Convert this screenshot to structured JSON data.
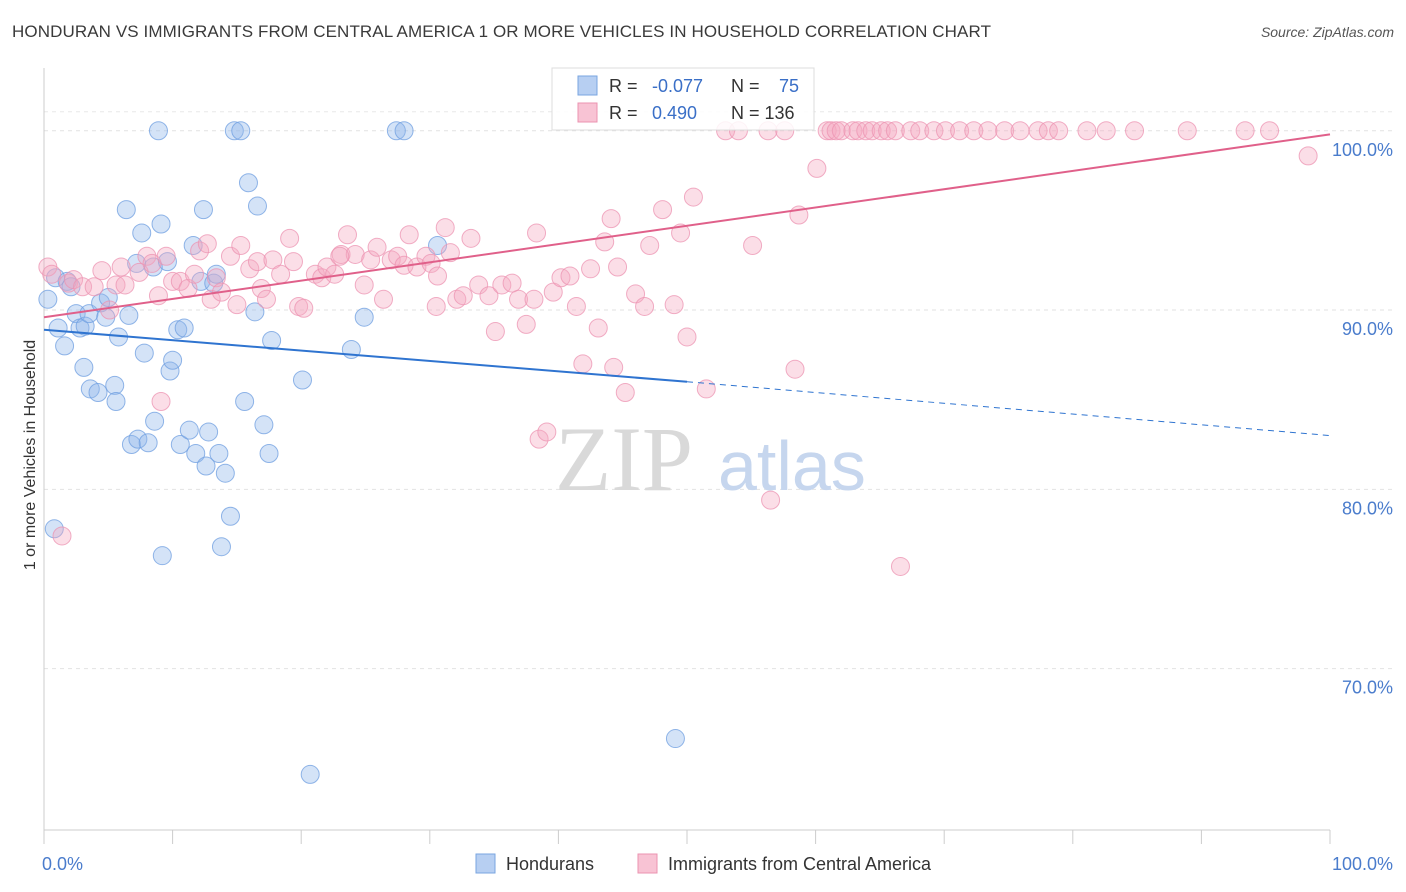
{
  "title": "HONDURAN VS IMMIGRANTS FROM CENTRAL AMERICA 1 OR MORE VEHICLES IN HOUSEHOLD CORRELATION CHART",
  "source": "Source: ZipAtlas.com",
  "watermark": {
    "zip": "ZIP",
    "atlas": "atlas"
  },
  "legend_box": {
    "rows": [
      {
        "r_label": "R =",
        "r_value": "-0.077",
        "n_label": "N =",
        "n_value": "75"
      },
      {
        "r_label": "R =",
        "r_value": "0.490",
        "n_label": "N = 136",
        "n_value": ""
      }
    ]
  },
  "chart_data": {
    "type": "scatter",
    "xlabel": "",
    "ylabel": "1 or more Vehicles in Household",
    "x_tick_labels": [
      "0.0%",
      "100.0%"
    ],
    "y_tick_labels": [
      "100.0%",
      "90.0%",
      "80.0%",
      "70.0%"
    ],
    "xlim": [
      0,
      100
    ],
    "ylim": [
      61,
      103.5
    ],
    "y_ticks": [
      100,
      90,
      80,
      70
    ],
    "grid": "horizontal dashed",
    "legend_position": "bottom-center",
    "colors": {
      "blue": "#8fb6ea",
      "blue_line": "#2f74d0",
      "pink": "#f4a9c1",
      "pink_line": "#e0608a",
      "tick_label": "#4a7ccc"
    },
    "series": [
      {
        "name": "Hondurans",
        "color": "#8fb6ea",
        "trend": {
          "x": [
            0,
            50
          ],
          "y": [
            88.9,
            86.0
          ],
          "dashed_to": [
            100,
            83.0
          ]
        },
        "points": [
          [
            0.3,
            90.6
          ],
          [
            0.8,
            77.8
          ],
          [
            0.9,
            91.8
          ],
          [
            1.1,
            89.0
          ],
          [
            1.6,
            88.0
          ],
          [
            1.8,
            91.6
          ],
          [
            2.1,
            91.3
          ],
          [
            2.5,
            89.8
          ],
          [
            2.8,
            89.0
          ],
          [
            3.1,
            86.8
          ],
          [
            3.2,
            89.1
          ],
          [
            3.5,
            89.8
          ],
          [
            3.6,
            85.6
          ],
          [
            4.2,
            85.4
          ],
          [
            4.4,
            90.4
          ],
          [
            4.8,
            89.6
          ],
          [
            5.0,
            90.7
          ],
          [
            5.5,
            85.8
          ],
          [
            5.6,
            84.9
          ],
          [
            5.8,
            88.5
          ],
          [
            6.4,
            95.6
          ],
          [
            6.6,
            89.7
          ],
          [
            6.8,
            82.5
          ],
          [
            7.2,
            92.6
          ],
          [
            7.3,
            82.8
          ],
          [
            7.6,
            94.3
          ],
          [
            7.8,
            87.6
          ],
          [
            8.1,
            82.6
          ],
          [
            8.5,
            92.4
          ],
          [
            8.6,
            83.8
          ],
          [
            8.9,
            100.0
          ],
          [
            9.1,
            94.8
          ],
          [
            9.2,
            76.3
          ],
          [
            9.6,
            92.7
          ],
          [
            9.8,
            86.6
          ],
          [
            10.0,
            87.2
          ],
          [
            10.4,
            88.9
          ],
          [
            10.6,
            82.5
          ],
          [
            10.9,
            89.0
          ],
          [
            11.3,
            83.3
          ],
          [
            11.6,
            93.6
          ],
          [
            11.8,
            82.0
          ],
          [
            12.2,
            91.6
          ],
          [
            12.4,
            95.6
          ],
          [
            12.6,
            81.3
          ],
          [
            12.8,
            83.2
          ],
          [
            13.2,
            91.5
          ],
          [
            13.4,
            92.0
          ],
          [
            13.6,
            82.0
          ],
          [
            13.8,
            76.8
          ],
          [
            14.1,
            80.9
          ],
          [
            14.5,
            78.5
          ],
          [
            14.8,
            100.0
          ],
          [
            15.3,
            100.0
          ],
          [
            15.6,
            84.9
          ],
          [
            15.9,
            97.1
          ],
          [
            16.4,
            89.9
          ],
          [
            16.6,
            95.8
          ],
          [
            17.1,
            83.6
          ],
          [
            17.5,
            82.0
          ],
          [
            17.7,
            88.3
          ],
          [
            20.1,
            86.1
          ],
          [
            20.7,
            64.1
          ],
          [
            23.9,
            87.8
          ],
          [
            24.9,
            89.6
          ],
          [
            27.4,
            100.0
          ],
          [
            28.0,
            100.0
          ],
          [
            30.6,
            93.6
          ],
          [
            49.1,
            66.1
          ]
        ]
      },
      {
        "name": "Immigrants from Central America",
        "color": "#f4a9c1",
        "trend": {
          "x": [
            0,
            100
          ],
          "y": [
            89.6,
            99.8
          ]
        },
        "points": [
          [
            0.3,
            92.4
          ],
          [
            0.6,
            92.0
          ],
          [
            1.4,
            77.4
          ],
          [
            1.9,
            91.5
          ],
          [
            2.3,
            91.7
          ],
          [
            3.0,
            91.3
          ],
          [
            3.9,
            91.3
          ],
          [
            4.5,
            92.2
          ],
          [
            5.1,
            90.0
          ],
          [
            5.6,
            91.4
          ],
          [
            6.0,
            92.4
          ],
          [
            6.3,
            91.4
          ],
          [
            7.4,
            92.1
          ],
          [
            8.0,
            93.0
          ],
          [
            8.4,
            92.6
          ],
          [
            8.9,
            90.8
          ],
          [
            9.1,
            84.9
          ],
          [
            9.5,
            93.0
          ],
          [
            10.0,
            91.6
          ],
          [
            10.6,
            91.6
          ],
          [
            11.2,
            91.2
          ],
          [
            11.7,
            92.0
          ],
          [
            12.1,
            93.3
          ],
          [
            12.7,
            93.7
          ],
          [
            13.0,
            90.6
          ],
          [
            13.4,
            91.8
          ],
          [
            13.8,
            91.0
          ],
          [
            14.5,
            93.0
          ],
          [
            15.0,
            90.3
          ],
          [
            15.3,
            93.6
          ],
          [
            16.0,
            92.3
          ],
          [
            16.6,
            92.7
          ],
          [
            16.9,
            91.2
          ],
          [
            17.3,
            90.6
          ],
          [
            17.8,
            92.8
          ],
          [
            18.4,
            92.0
          ],
          [
            19.1,
            94.0
          ],
          [
            19.4,
            92.7
          ],
          [
            19.8,
            90.2
          ],
          [
            20.2,
            90.1
          ],
          [
            21.1,
            92.0
          ],
          [
            21.6,
            91.8
          ],
          [
            22.0,
            92.4
          ],
          [
            22.6,
            92.0
          ],
          [
            23.1,
            93.1
          ],
          [
            23.6,
            94.2
          ],
          [
            24.2,
            93.1
          ],
          [
            24.9,
            91.4
          ],
          [
            25.4,
            92.8
          ],
          [
            25.9,
            93.5
          ],
          [
            26.4,
            90.6
          ],
          [
            27.0,
            92.8
          ],
          [
            27.5,
            93.0
          ],
          [
            28.0,
            92.5
          ],
          [
            28.4,
            94.2
          ],
          [
            29.0,
            92.4
          ],
          [
            29.7,
            93.0
          ],
          [
            30.1,
            92.6
          ],
          [
            30.5,
            90.2
          ],
          [
            31.2,
            94.6
          ],
          [
            31.6,
            93.2
          ],
          [
            32.1,
            90.6
          ],
          [
            32.6,
            90.8
          ],
          [
            33.2,
            94.0
          ],
          [
            33.8,
            91.4
          ],
          [
            34.6,
            90.8
          ],
          [
            35.1,
            88.8
          ],
          [
            35.6,
            91.4
          ],
          [
            36.4,
            91.5
          ],
          [
            36.9,
            90.6
          ],
          [
            37.5,
            89.2
          ],
          [
            38.1,
            90.6
          ],
          [
            38.5,
            82.8
          ],
          [
            39.1,
            83.2
          ],
          [
            39.6,
            91.0
          ],
          [
            40.2,
            91.8
          ],
          [
            40.9,
            91.9
          ],
          [
            41.4,
            90.2
          ],
          [
            41.9,
            87.0
          ],
          [
            42.5,
            92.3
          ],
          [
            43.1,
            89.0
          ],
          [
            43.6,
            93.8
          ],
          [
            44.1,
            95.1
          ],
          [
            44.6,
            92.4
          ],
          [
            45.2,
            85.4
          ],
          [
            46.0,
            90.9
          ],
          [
            46.7,
            90.2
          ],
          [
            47.1,
            93.6
          ],
          [
            48.1,
            95.6
          ],
          [
            49.0,
            90.3
          ],
          [
            49.5,
            94.3
          ],
          [
            50.0,
            88.5
          ],
          [
            50.5,
            96.3
          ],
          [
            51.5,
            85.6
          ],
          [
            53.0,
            100.0
          ],
          [
            54.0,
            100.0
          ],
          [
            55.1,
            93.6
          ],
          [
            56.3,
            100.0
          ],
          [
            56.5,
            79.4
          ],
          [
            57.6,
            100.0
          ],
          [
            58.4,
            86.7
          ],
          [
            58.7,
            95.3
          ],
          [
            60.1,
            97.9
          ],
          [
            60.9,
            100.0
          ],
          [
            61.2,
            100.0
          ],
          [
            61.6,
            100.0
          ],
          [
            62.0,
            100.0
          ],
          [
            62.9,
            100.0
          ],
          [
            63.3,
            100.0
          ],
          [
            63.9,
            100.0
          ],
          [
            64.4,
            100.0
          ],
          [
            65.1,
            100.0
          ],
          [
            65.6,
            100.0
          ],
          [
            66.2,
            100.0
          ],
          [
            66.6,
            75.7
          ],
          [
            67.4,
            100.0
          ],
          [
            68.1,
            100.0
          ],
          [
            69.2,
            100.0
          ],
          [
            70.1,
            100.0
          ],
          [
            71.2,
            100.0
          ],
          [
            72.3,
            100.0
          ],
          [
            73.4,
            100.0
          ],
          [
            74.7,
            100.0
          ],
          [
            75.9,
            100.0
          ],
          [
            77.3,
            100.0
          ],
          [
            78.1,
            100.0
          ],
          [
            78.9,
            100.0
          ],
          [
            81.1,
            100.0
          ],
          [
            82.6,
            100.0
          ],
          [
            84.8,
            100.0
          ],
          [
            88.9,
            100.0
          ],
          [
            93.4,
            100.0
          ],
          [
            95.3,
            100.0
          ],
          [
            98.3,
            98.6
          ],
          [
            38.3,
            94.3
          ],
          [
            23.0,
            93.0
          ],
          [
            30.6,
            91.9
          ],
          [
            44.3,
            86.8
          ]
        ]
      }
    ]
  },
  "bottom_legend": [
    {
      "label": "Hondurans",
      "color": "#8fb6ea"
    },
    {
      "label": "Immigrants from Central America",
      "color": "#f4a9c1"
    }
  ]
}
